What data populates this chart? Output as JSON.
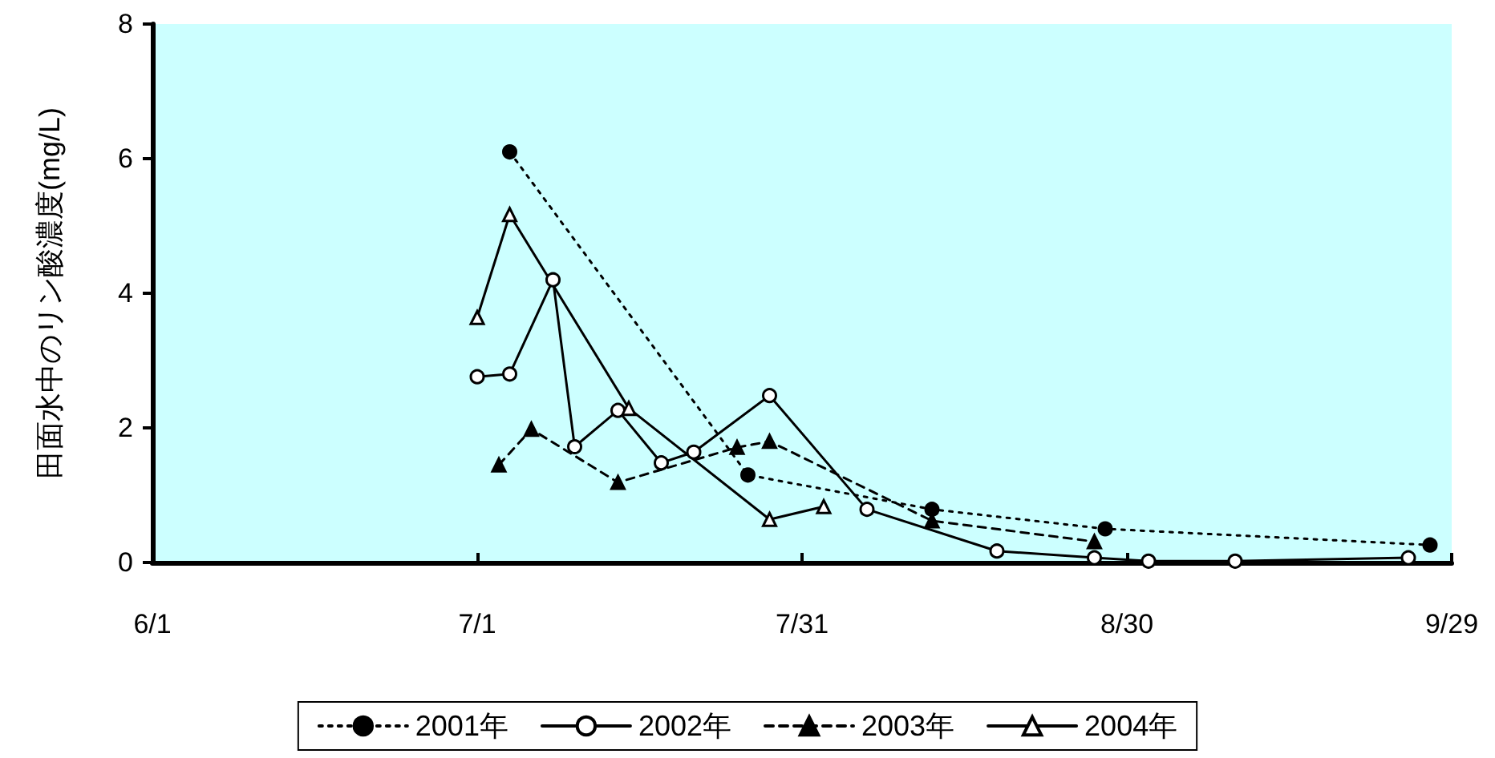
{
  "chart_data": {
    "type": "line",
    "ylabel": "田面水中のリン酸濃度(mg/L)",
    "xlim": [
      "--06-01",
      "--09-29"
    ],
    "xticks": [
      {
        "value": "--06-01",
        "label": "6/1"
      },
      {
        "value": "--07-01",
        "label": "7/1"
      },
      {
        "value": "--07-31",
        "label": "7/31"
      },
      {
        "value": "--08-30",
        "label": "8/30"
      },
      {
        "value": "--09-29",
        "label": "9/29"
      }
    ],
    "ylim": [
      0,
      8
    ],
    "yticks": [
      0,
      2,
      4,
      6,
      8
    ],
    "grid": false,
    "legend": "bottom",
    "series": [
      {
        "name": "2001年",
        "color": "#000000",
        "marker": "circle",
        "line_style": "dotted",
        "x": [
          "--07-04",
          "--07-26",
          "--08-12",
          "--08-28",
          "--09-27"
        ],
        "values": [
          6.1,
          1.3,
          0.79,
          0.5,
          0.26
        ]
      },
      {
        "name": "2002年",
        "color": "#000000",
        "marker": "circle",
        "line_style": "solid",
        "x": [
          "--07-01",
          "--07-04",
          "--07-08",
          "--07-10",
          "--07-14",
          "--07-18",
          "--07-21",
          "--07-28",
          "--08-06",
          "--08-18",
          "--08-27",
          "--09-01",
          "--09-09",
          "--09-25"
        ],
        "values": [
          2.76,
          2.8,
          4.2,
          1.72,
          2.26,
          1.48,
          1.64,
          2.48,
          0.79,
          0.17,
          0.07,
          0.02,
          0.02,
          0.07
        ]
      },
      {
        "name": "2003年",
        "color": "#000000",
        "marker": "triangle",
        "line_style": "dashed",
        "x": [
          "--07-03",
          "--07-06",
          "--07-14",
          "--07-25",
          "--07-28",
          "--08-12",
          "--08-27"
        ],
        "values": [
          1.45,
          1.98,
          1.19,
          1.71,
          1.8,
          0.62,
          0.31
        ]
      },
      {
        "name": "2004年",
        "color": "#000000",
        "marker": "triangle",
        "line_style": "solid",
        "x": [
          "--07-01",
          "--07-04",
          "--07-15",
          "--07-28",
          "--08-02"
        ],
        "values": [
          3.64,
          5.17,
          2.29,
          0.64,
          0.83
        ]
      }
    ]
  }
}
